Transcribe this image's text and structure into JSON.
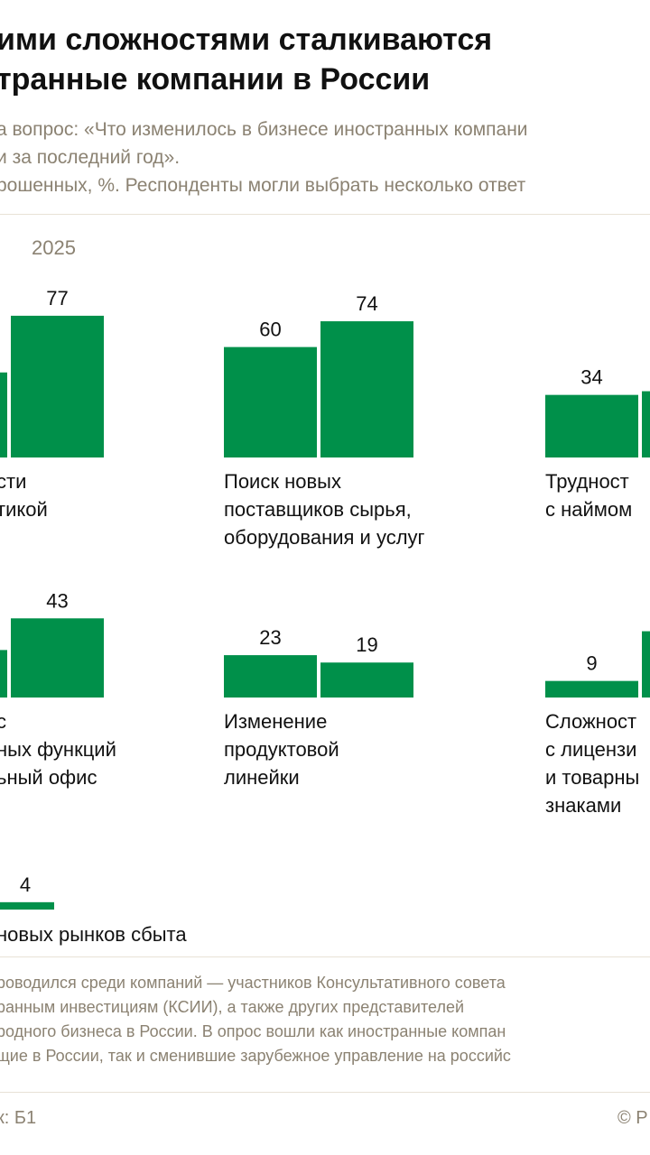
{
  "header": {
    "title_line1": "ими сложностями сталкиваются",
    "title_line2": "транные компании в России",
    "subtitle_line1": "а вопрос: «Что изменилось в бизнесе иностранных компани",
    "subtitle_line2": "и за последний год».",
    "subtitle_line3": "рошенных, %. Респонденты могли выбрать несколько ответ"
  },
  "legend": {
    "year_label": "2025"
  },
  "chart_data": {
    "type": "bar",
    "ylim": [
      0,
      100
    ],
    "colors": {
      "bar": "#00904a",
      "bar_light": "#b9e5c5",
      "text": "#111111",
      "muted": "#8b8272"
    },
    "groups": [
      {
        "label_lines": [
          "сти",
          "тикой"
        ],
        "values_2025": 77
      },
      {
        "label_lines": [
          "Поиск новых",
          "поставщиков сырья,",
          "оборудования и услуг"
        ],
        "value_prev": 60,
        "values_2025": 74
      },
      {
        "label_lines": [
          "Трудност",
          "с наймом"
        ],
        "value_prev": 34
      },
      {
        "label_lines": [
          "с",
          "ных функций",
          "ьный офис"
        ],
        "values_2025": 43
      },
      {
        "label_lines": [
          "Изменение",
          "продуктовой",
          "линейки"
        ],
        "value_prev": 23,
        "values_2025": 19
      },
      {
        "label_lines": [
          "Сложност",
          "с лицензи",
          "и товарны",
          "знаками"
        ],
        "value_prev": 9
      },
      {
        "label_lines": [
          "новых рынков сбыта"
        ],
        "values_2025": 4
      }
    ]
  },
  "footer": {
    "note": "роводился среди компаний — участников Консультативного совета\nранным инвестициям (КСИИ), а также других представителей\nродного бизнеса в России. В опрос вошли как иностранные компан\nщие в России, так и сменившие зарубежное управление на российс",
    "source": "к: Б1",
    "copyright": "© Р"
  }
}
